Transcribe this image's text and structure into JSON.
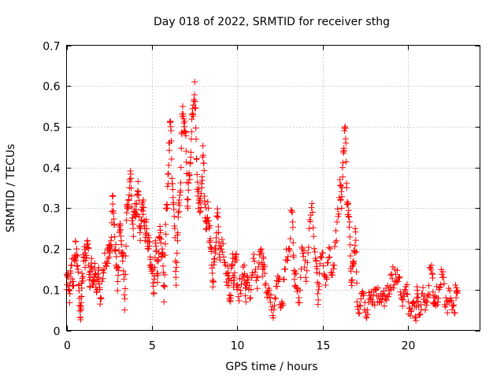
{
  "chart_data": {
    "type": "scatter",
    "title": "Day 018 of 2022, SRMTID for receiver sthg",
    "xlabel": "GPS time / hours",
    "ylabel": "SRMTID / TECUs",
    "xlim": [
      0,
      24.2
    ],
    "ylim": [
      0,
      0.7
    ],
    "xticks": [
      0,
      5,
      10,
      15,
      20
    ],
    "xtick_labels": [
      "0",
      "5",
      "10",
      "15",
      "20"
    ],
    "yticks": [
      0,
      0.1,
      0.2,
      0.3,
      0.4,
      0.5,
      0.6,
      0.7
    ],
    "ytick_labels": [
      "0",
      "0.1",
      "0.2",
      "0.3",
      "0.4",
      "0.5",
      "0.6",
      "0.7"
    ],
    "grid": true,
    "marker": "+",
    "series": [
      {
        "name": "SRMTID",
        "color": "#ff0000",
        "points": [
          [
            0.0,
            0.1
          ],
          [
            0.1,
            0.13
          ],
          [
            0.2,
            0.09
          ],
          [
            0.3,
            0.16
          ],
          [
            0.4,
            0.12
          ],
          [
            0.5,
            0.18
          ],
          [
            0.6,
            0.2
          ],
          [
            0.7,
            0.11
          ],
          [
            0.8,
            0.06
          ],
          [
            0.85,
            0.05
          ],
          [
            0.9,
            0.14
          ],
          [
            1.0,
            0.17
          ],
          [
            1.1,
            0.19
          ],
          [
            1.2,
            0.21
          ],
          [
            1.3,
            0.16
          ],
          [
            1.4,
            0.13
          ],
          [
            1.5,
            0.15
          ],
          [
            1.6,
            0.12
          ],
          [
            1.7,
            0.14
          ],
          [
            1.8,
            0.1
          ],
          [
            1.9,
            0.13
          ],
          [
            2.0,
            0.08
          ],
          [
            2.2,
            0.15
          ],
          [
            2.4,
            0.2
          ],
          [
            2.5,
            0.18
          ],
          [
            2.6,
            0.22
          ],
          [
            2.7,
            0.31
          ],
          [
            2.8,
            0.26
          ],
          [
            2.9,
            0.16
          ],
          [
            3.0,
            0.12
          ],
          [
            3.1,
            0.24
          ],
          [
            3.2,
            0.22
          ],
          [
            3.3,
            0.19
          ],
          [
            3.4,
            0.05
          ],
          [
            3.5,
            0.27
          ],
          [
            3.6,
            0.3
          ],
          [
            3.7,
            0.37
          ],
          [
            3.8,
            0.33
          ],
          [
            3.9,
            0.25
          ],
          [
            4.0,
            0.29
          ],
          [
            4.1,
            0.31
          ],
          [
            4.2,
            0.34
          ],
          [
            4.3,
            0.24
          ],
          [
            4.4,
            0.27
          ],
          [
            4.5,
            0.32
          ],
          [
            4.6,
            0.22
          ],
          [
            4.7,
            0.25
          ],
          [
            4.8,
            0.2
          ],
          [
            4.9,
            0.18
          ],
          [
            5.0,
            0.15
          ],
          [
            5.1,
            0.09
          ],
          [
            5.2,
            0.22
          ],
          [
            5.3,
            0.14
          ],
          [
            5.4,
            0.19
          ],
          [
            5.5,
            0.24
          ],
          [
            5.6,
            0.2
          ],
          [
            5.7,
            0.07
          ],
          [
            5.8,
            0.26
          ],
          [
            5.9,
            0.3
          ],
          [
            6.0,
            0.46
          ],
          [
            6.1,
            0.5
          ],
          [
            6.2,
            0.36
          ],
          [
            6.3,
            0.28
          ],
          [
            6.4,
            0.13
          ],
          [
            6.5,
            0.22
          ],
          [
            6.6,
            0.32
          ],
          [
            6.7,
            0.4
          ],
          [
            6.8,
            0.55
          ],
          [
            6.9,
            0.5
          ],
          [
            7.0,
            0.44
          ],
          [
            7.1,
            0.3
          ],
          [
            7.2,
            0.38
          ],
          [
            7.3,
            0.47
          ],
          [
            7.4,
            0.53
          ],
          [
            7.5,
            0.61
          ],
          [
            7.6,
            0.42
          ],
          [
            7.7,
            0.34
          ],
          [
            7.8,
            0.29
          ],
          [
            7.9,
            0.36
          ],
          [
            8.0,
            0.43
          ],
          [
            8.1,
            0.31
          ],
          [
            8.2,
            0.25
          ],
          [
            8.3,
            0.3
          ],
          [
            8.4,
            0.22
          ],
          [
            8.5,
            0.16
          ],
          [
            8.6,
            0.12
          ],
          [
            8.7,
            0.19
          ],
          [
            8.8,
            0.28
          ],
          [
            8.9,
            0.24
          ],
          [
            9.0,
            0.2
          ],
          [
            9.2,
            0.18
          ],
          [
            9.4,
            0.14
          ],
          [
            9.5,
            0.11
          ],
          [
            9.6,
            0.08
          ],
          [
            9.7,
            0.16
          ],
          [
            9.8,
            0.13
          ],
          [
            9.9,
            0.18
          ],
          [
            10.0,
            0.11
          ],
          [
            10.2,
            0.09
          ],
          [
            10.4,
            0.16
          ],
          [
            10.5,
            0.07
          ],
          [
            10.6,
            0.13
          ],
          [
            10.8,
            0.1
          ],
          [
            11.0,
            0.17
          ],
          [
            11.2,
            0.13
          ],
          [
            11.4,
            0.2
          ],
          [
            11.5,
            0.15
          ],
          [
            11.6,
            0.14
          ],
          [
            11.8,
            0.09
          ],
          [
            12.0,
            0.05
          ],
          [
            12.2,
            0.08
          ],
          [
            12.4,
            0.12
          ],
          [
            12.6,
            0.07
          ],
          [
            12.8,
            0.15
          ],
          [
            13.0,
            0.2
          ],
          [
            13.2,
            0.29
          ],
          [
            13.3,
            0.18
          ],
          [
            13.4,
            0.11
          ],
          [
            13.6,
            0.08
          ],
          [
            13.8,
            0.2
          ],
          [
            14.0,
            0.13
          ],
          [
            14.2,
            0.25
          ],
          [
            14.4,
            0.29
          ],
          [
            14.6,
            0.17
          ],
          [
            14.7,
            0.09
          ],
          [
            14.8,
            0.14
          ],
          [
            15.0,
            0.19
          ],
          [
            15.2,
            0.13
          ],
          [
            15.4,
            0.18
          ],
          [
            15.6,
            0.16
          ],
          [
            15.8,
            0.22
          ],
          [
            16.0,
            0.37
          ],
          [
            16.1,
            0.3
          ],
          [
            16.2,
            0.44
          ],
          [
            16.3,
            0.5
          ],
          [
            16.4,
            0.35
          ],
          [
            16.5,
            0.28
          ],
          [
            16.6,
            0.21
          ],
          [
            16.7,
            0.11
          ],
          [
            16.8,
            0.17
          ],
          [
            16.9,
            0.25
          ],
          [
            17.0,
            0.07
          ],
          [
            17.2,
            0.06
          ],
          [
            17.4,
            0.09
          ],
          [
            17.6,
            0.05
          ],
          [
            17.8,
            0.08
          ],
          [
            18.0,
            0.1
          ],
          [
            18.2,
            0.07
          ],
          [
            18.4,
            0.09
          ],
          [
            18.6,
            0.06
          ],
          [
            18.8,
            0.11
          ],
          [
            19.0,
            0.1
          ],
          [
            19.2,
            0.15
          ],
          [
            19.4,
            0.12
          ],
          [
            19.6,
            0.08
          ],
          [
            19.8,
            0.1
          ],
          [
            20.0,
            0.07
          ],
          [
            20.2,
            0.05
          ],
          [
            20.4,
            0.03
          ],
          [
            20.5,
            0.08
          ],
          [
            20.6,
            0.06
          ],
          [
            20.8,
            0.09
          ],
          [
            21.0,
            0.05
          ],
          [
            21.2,
            0.11
          ],
          [
            21.4,
            0.14
          ],
          [
            21.5,
            0.08
          ],
          [
            21.6,
            0.06
          ],
          [
            21.8,
            0.1
          ],
          [
            22.0,
            0.13
          ],
          [
            22.2,
            0.08
          ],
          [
            22.4,
            0.07
          ],
          [
            22.6,
            0.06
          ],
          [
            22.8,
            0.08
          ]
        ]
      }
    ]
  }
}
